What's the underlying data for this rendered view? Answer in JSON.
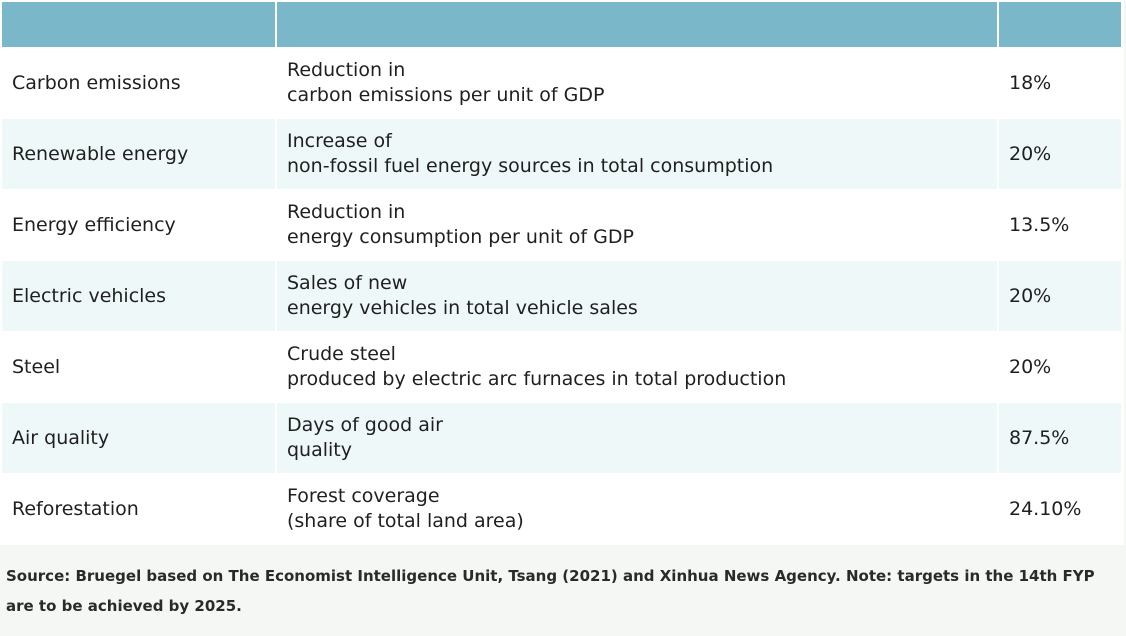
{
  "table": {
    "header": [
      "",
      "",
      ""
    ],
    "rows": [
      {
        "label": "Carbon emissions",
        "desc_line1": "Reduction in",
        "desc_line2": "carbon emissions per unit of GDP",
        "value": "18%"
      },
      {
        "label": "Renewable energy",
        "desc_line1": "Increase of",
        "desc_line2": "non-fossil fuel energy sources in total consumption",
        "value": "20%"
      },
      {
        "label": "Energy efficiency",
        "desc_line1": "Reduction in",
        "desc_line2": "energy consumption per unit of GDP",
        "value": "13.5%"
      },
      {
        "label": "Electric vehicles",
        "desc_line1": "Sales of new",
        "desc_line2": "energy vehicles in total vehicle sales",
        "value": "20%"
      },
      {
        "label": "Steel",
        "desc_line1": "Crude steel",
        "desc_line2": "produced by electric arc furnaces in total production",
        "value": "20%"
      },
      {
        "label": "Air quality",
        "desc_line1": "Days of good air",
        "desc_line2": "quality",
        "value": "87.5%"
      },
      {
        "label": "Reforestation",
        "desc_line1": "Forest coverage",
        "desc_line2": "(share of total land area)",
        "value": "24.10%"
      }
    ]
  },
  "source_note": "Source: Bruegel based on The Economist Intelligence Unit, Tsang (2021) and Xinhua News Agency. Note: targets in the 14th FYP are to be achieved by 2025.",
  "colors": {
    "header_bg": "#7ab8c9",
    "row_alt_bg": "#eff8f9",
    "page_bg": "#f4f7f3"
  }
}
